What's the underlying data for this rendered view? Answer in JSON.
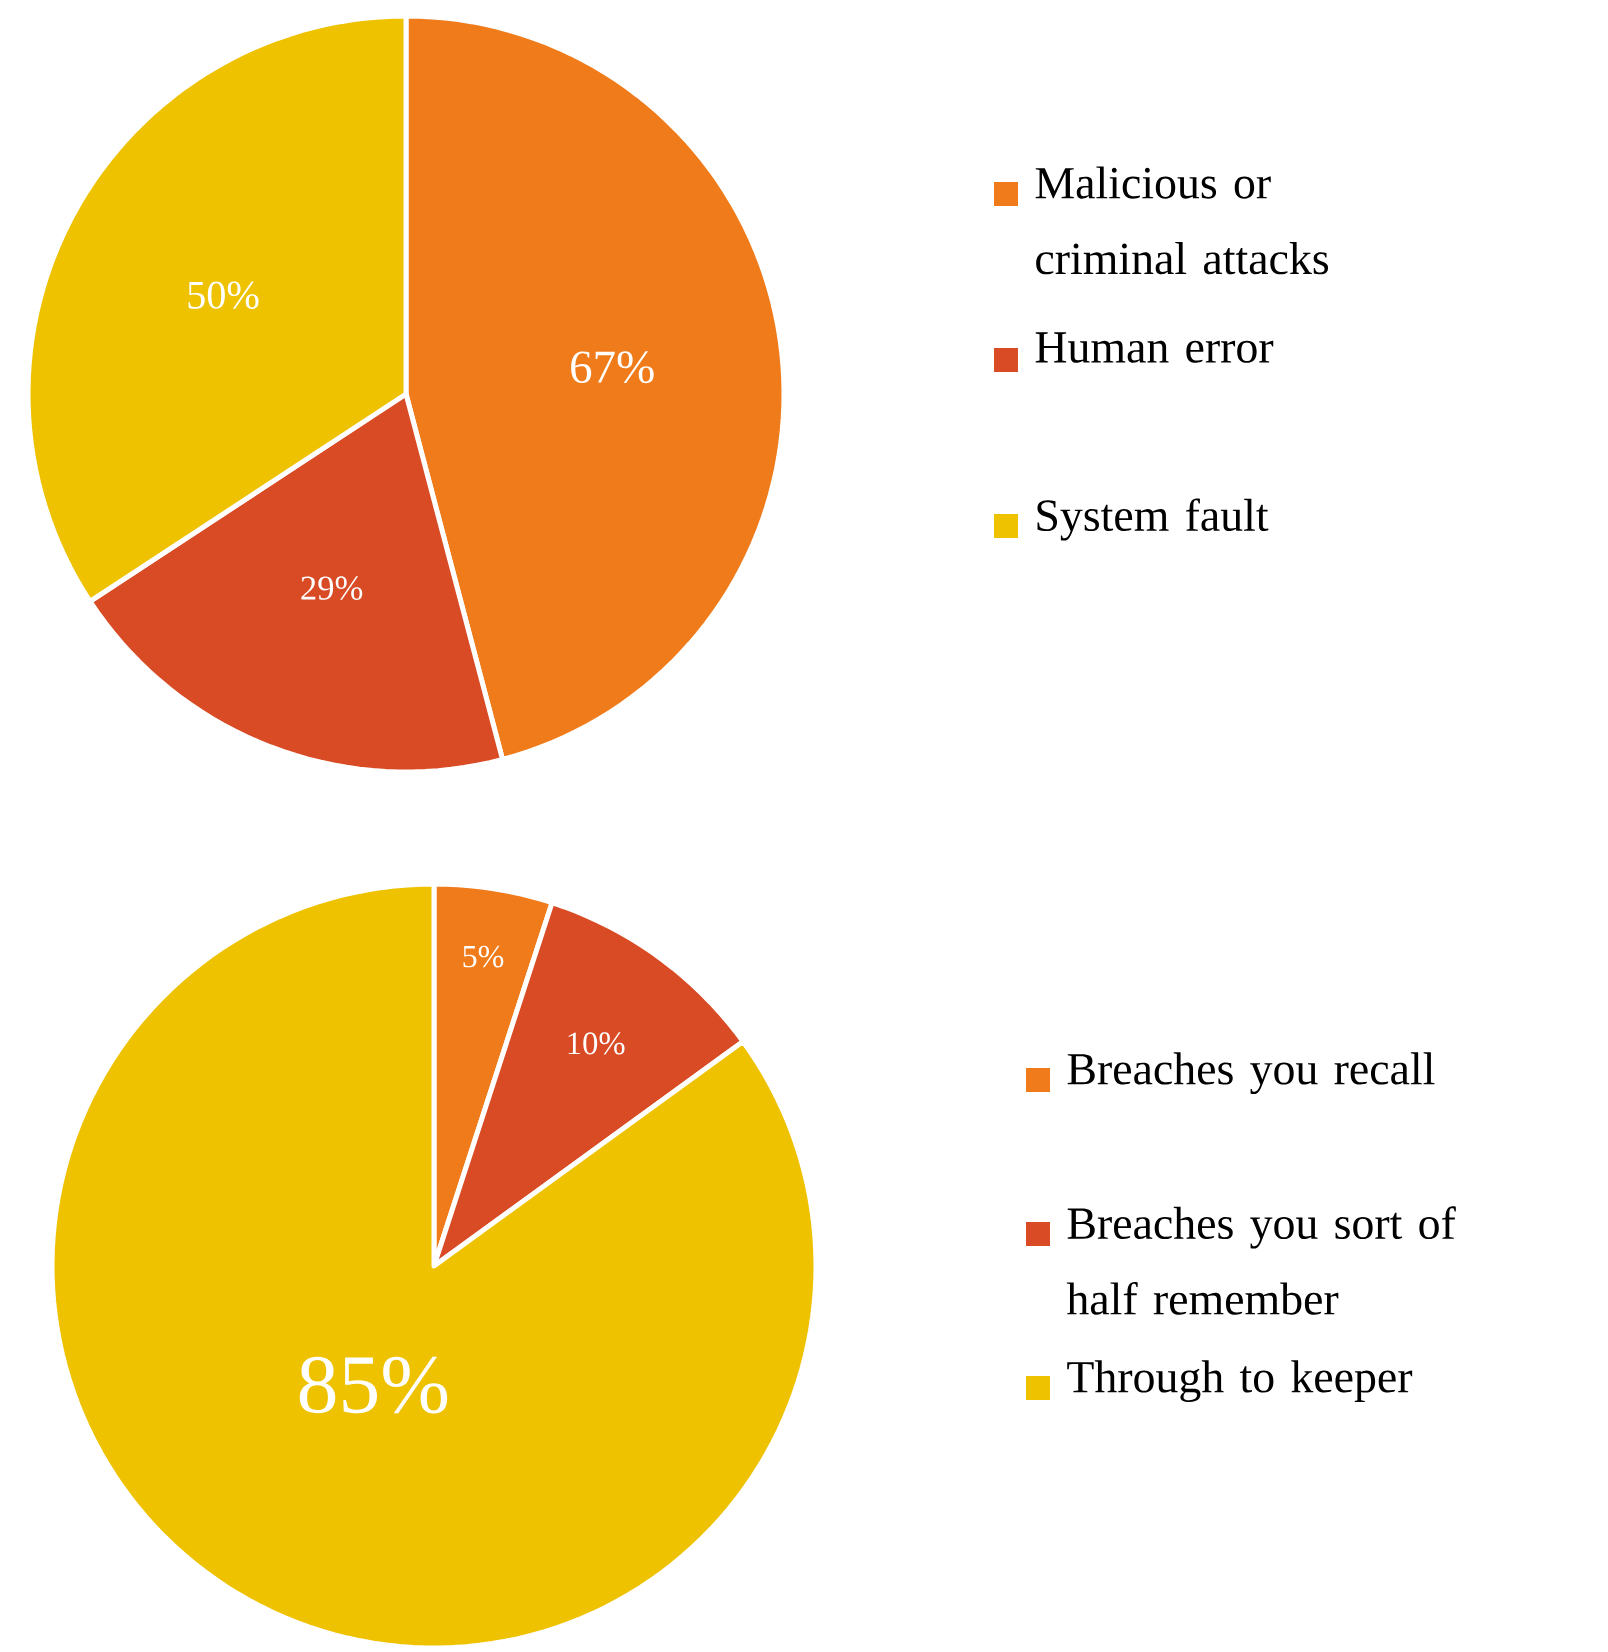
{
  "chart_data": [
    {
      "type": "pie",
      "categories": [
        "Malicious or criminal attacks",
        "Human error",
        "System fault"
      ],
      "values": [
        67,
        29,
        50
      ],
      "value_labels": [
        "67%",
        "29%",
        "50%"
      ],
      "colors": [
        "#f07b1a",
        "#d84b24",
        "#efc200"
      ],
      "legend": "right"
    },
    {
      "type": "pie",
      "categories": [
        "Breaches you recall",
        "Breaches you sort of half remember",
        "Through to keeper"
      ],
      "values": [
        5,
        10,
        85
      ],
      "value_labels": [
        "5%",
        "10%",
        "85%"
      ],
      "colors": [
        "#f07b1a",
        "#d84b24",
        "#efc200"
      ],
      "legend": "right"
    }
  ]
}
